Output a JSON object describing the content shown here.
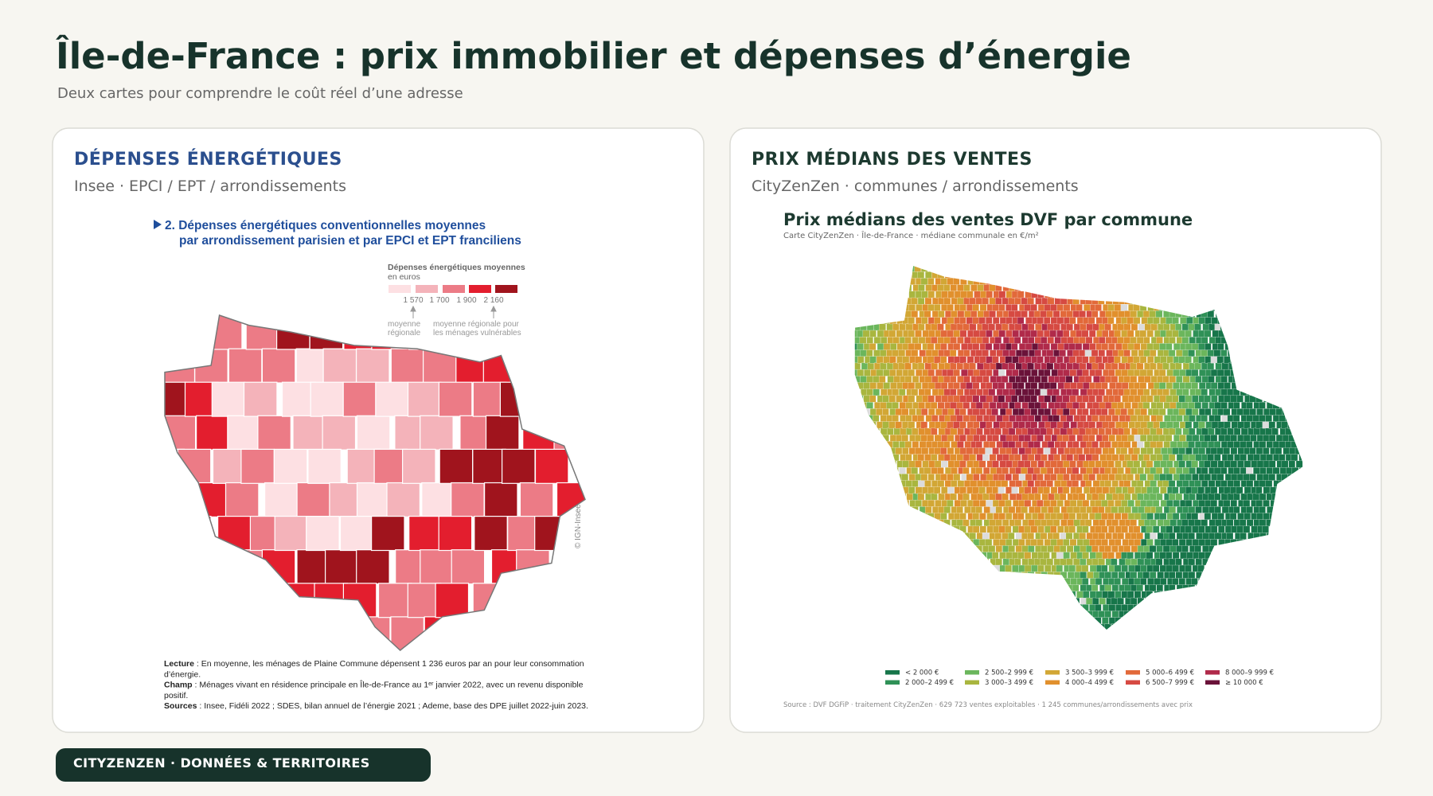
{
  "header": {
    "title": "Île-de-France : prix immobilier et dépenses d’énergie",
    "subtitle": "Deux cartes pour comprendre le coût réel d’une adresse"
  },
  "panels": [
    {
      "title": "DÉPENSES ÉNERGÉTIQUES",
      "subtitle": "Insee · EPCI / EPT / arrondissements",
      "map": {
        "heading": [
          "2. Dépenses énergétiques conventionnelles moyennes",
          "par arrondissement parisien et par EPCI et EPT franciliens"
        ],
        "legend_title": [
          "Dépenses énergétiques moyennes",
          "en euros"
        ],
        "legend_ticks": [
          "1 570",
          "1 700",
          "1 900",
          "2 160"
        ],
        "annotations": [
          [
            "moyenne",
            "régionale"
          ],
          [
            "moyenne régionale pour",
            "les ménages vulnérables"
          ]
        ],
        "credit": "© IGN-Insee 2026",
        "notes": [
          {
            "label": "Lecture",
            "lines": [
              " : En moyenne, les ménages de Plaine Commune dépensent 1 236 euros par an pour leur consommation",
              "d’énergie."
            ]
          },
          {
            "label": "Champ",
            "lines": [
              " : Ménages vivant en résidence principale en Île-de-France au 1ᵉʳ janvier 2022, avec un revenu disponible",
              "positif."
            ]
          },
          {
            "label": "Sources",
            "lines": [
              " : Insee, Fidéli 2022 ; SDES, bilan annuel de l’énergie 2021 ; Ademe, base des DPE juillet 2022-juin 2023."
            ]
          }
        ]
      }
    },
    {
      "title": "PRIX MÉDIANS DES VENTES",
      "subtitle": "CityZenZen · communes / arrondissements",
      "map": {
        "title": "Prix médians des ventes DVF par commune",
        "subtitle": "Carte CityZenZen · Île-de-France · médiane communale en €/m²",
        "legend": [
          {
            "label": "< 2 000 €",
            "color": "#17764a"
          },
          {
            "label": "2 000–2 499 €",
            "color": "#2f9157"
          },
          {
            "label": "2 500–2 999 €",
            "color": "#6bb65c"
          },
          {
            "label": "3 000–3 499 €",
            "color": "#a9b63f"
          },
          {
            "label": "3 500–3 999 €",
            "color": "#d2a735"
          },
          {
            "label": "4 000–4 499 €",
            "color": "#e1902d"
          },
          {
            "label": "5 000–6 499 €",
            "color": "#e2693a"
          },
          {
            "label": "6 500–7 999 €",
            "color": "#d64a42"
          },
          {
            "label": "8 000–9 999 €",
            "color": "#b02a4a"
          },
          {
            "label": "≥ 10 000 €",
            "color": "#6a1239"
          }
        ],
        "source": "Source : DVF DGFiP · traitement CityZenZen · 629 723 ventes exploitables · 1 245 communes/arrondissements avec prix"
      }
    }
  ],
  "footer": {
    "label": "CITYZENZEN · DONNÉES & TERRITOIRES"
  }
}
